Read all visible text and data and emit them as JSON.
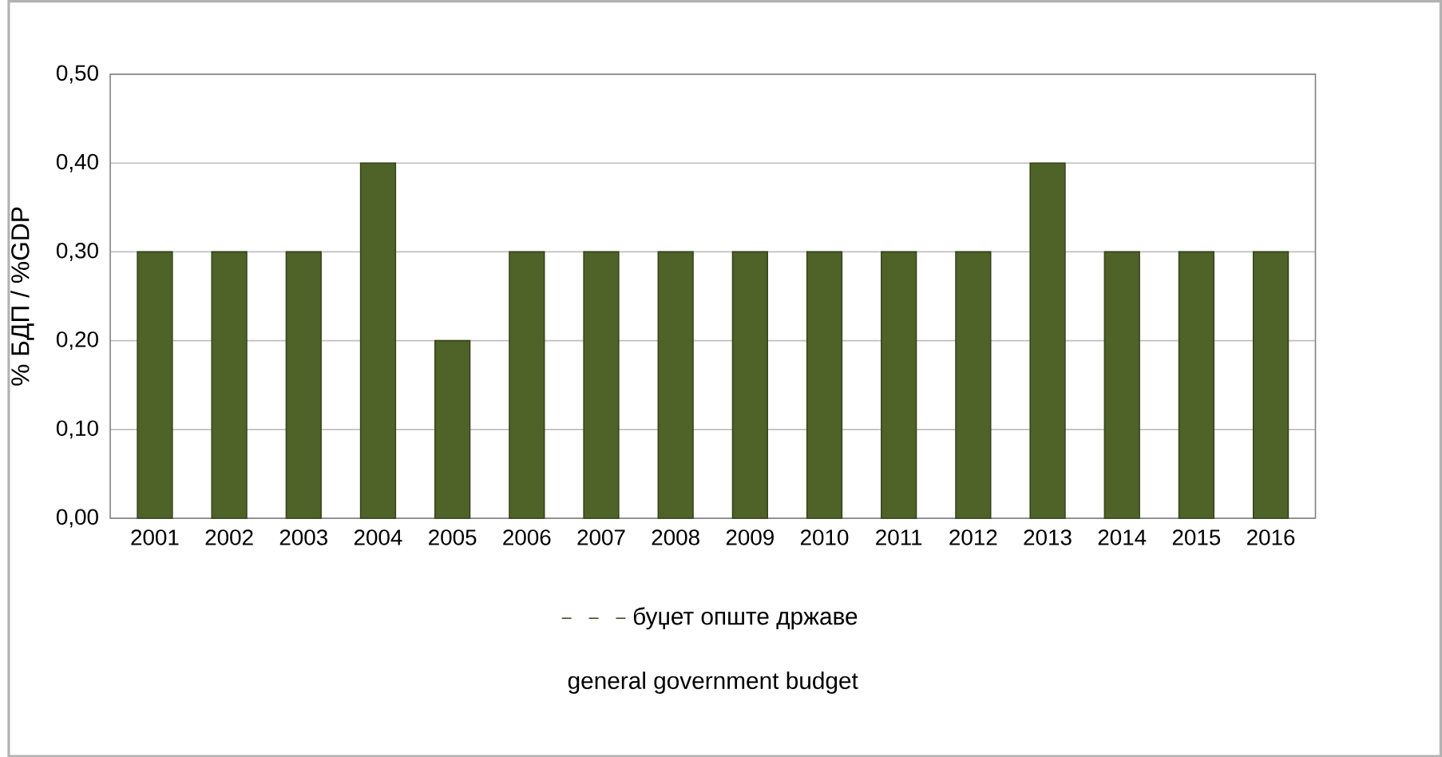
{
  "chart_data": {
    "type": "bar",
    "ylabel": "% БДП / %GDP",
    "categories": [
      "2001",
      "2002",
      "2003",
      "2004",
      "2005",
      "2006",
      "2007",
      "2008",
      "2009",
      "2010",
      "2011",
      "2012",
      "2013",
      "2014",
      "2015",
      "2016"
    ],
    "series": [
      {
        "name": "буџет опште државе",
        "color": "#4f6228",
        "values": [
          0.3,
          0.3,
          0.3,
          0.4,
          0.2,
          0.3,
          0.3,
          0.3,
          0.3,
          0.3,
          0.3,
          0.3,
          0.4,
          0.3,
          0.3,
          0.3
        ]
      }
    ],
    "ylim": [
      0,
      0.5
    ],
    "yticks": [
      {
        "value": 0,
        "label": "0,00"
      },
      {
        "value": 0.1,
        "label": "0,10"
      },
      {
        "value": 0.2,
        "label": "0,20"
      },
      {
        "value": 0.3,
        "label": "0,30"
      },
      {
        "value": 0.4,
        "label": "0,40"
      },
      {
        "value": 0.5,
        "label": "0,50"
      }
    ],
    "grid": "y",
    "legend": "bottom",
    "annotations": [
      "general government budget"
    ]
  }
}
